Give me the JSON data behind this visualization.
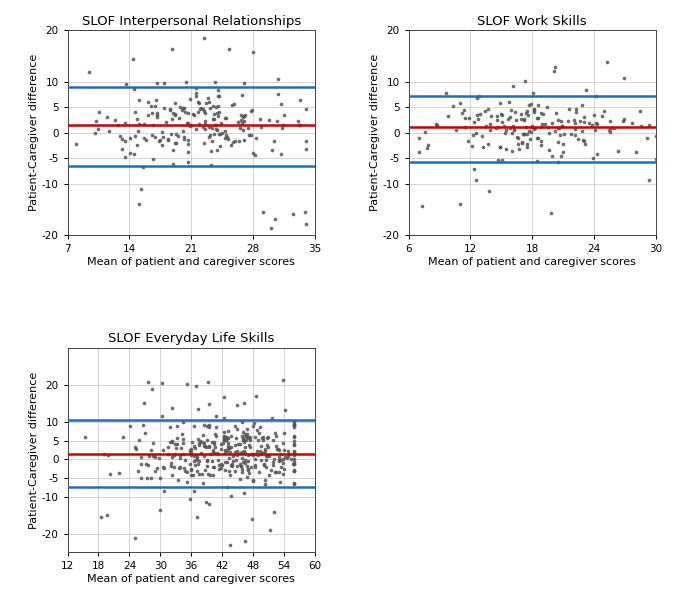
{
  "plots": [
    {
      "title": "SLOF Interpersonal Relationships",
      "xlim": [
        7,
        35
      ],
      "ylim": [
        -20,
        20
      ],
      "xticks": [
        7,
        14,
        21,
        28,
        35
      ],
      "yticks": [
        -20,
        -10,
        -5,
        0,
        5,
        10,
        20
      ],
      "mean_line": 1.5,
      "upper_loa": 9.0,
      "lower_loa": -6.5,
      "x_center": 22,
      "x_spread": 6,
      "x_min": 8,
      "x_max": 34,
      "seed": 42,
      "n_points": 200
    },
    {
      "title": "SLOF Work Skills",
      "xlim": [
        6,
        30
      ],
      "ylim": [
        -20,
        20
      ],
      "xticks": [
        6,
        12,
        18,
        24,
        30
      ],
      "yticks": [
        -20,
        -10,
        -5,
        0,
        5,
        10,
        20
      ],
      "mean_line": 1.2,
      "upper_loa": 7.2,
      "lower_loa": -5.8,
      "x_center": 18,
      "x_spread": 5,
      "x_min": 7,
      "x_max": 30,
      "seed": 43,
      "n_points": 180
    },
    {
      "title": "SLOF Everyday Life Skills",
      "xlim": [
        12,
        60
      ],
      "ylim": [
        -25,
        30
      ],
      "xticks": [
        12,
        18,
        24,
        30,
        36,
        42,
        48,
        54,
        60
      ],
      "yticks": [
        -20,
        -10,
        -5,
        0,
        5,
        10,
        20
      ],
      "mean_line": 1.5,
      "upper_loa": 10.5,
      "lower_loa": -7.5,
      "x_center": 43,
      "x_spread": 9,
      "x_min": 13,
      "x_max": 56,
      "seed": 44,
      "n_points": 350
    }
  ],
  "red_color": "#cc0000",
  "blue_color": "#1f6eb5",
  "dot_color": "#555555",
  "dot_size": 7,
  "line_width": 1.8,
  "xlabel": "Mean of patient and caregiver scores",
  "ylabel": "Patient-Caregiver difference",
  "grid_color": "#cccccc",
  "bg_color": "#ffffff",
  "figsize": [
    6.76,
    6.07
  ],
  "dpi": 100
}
